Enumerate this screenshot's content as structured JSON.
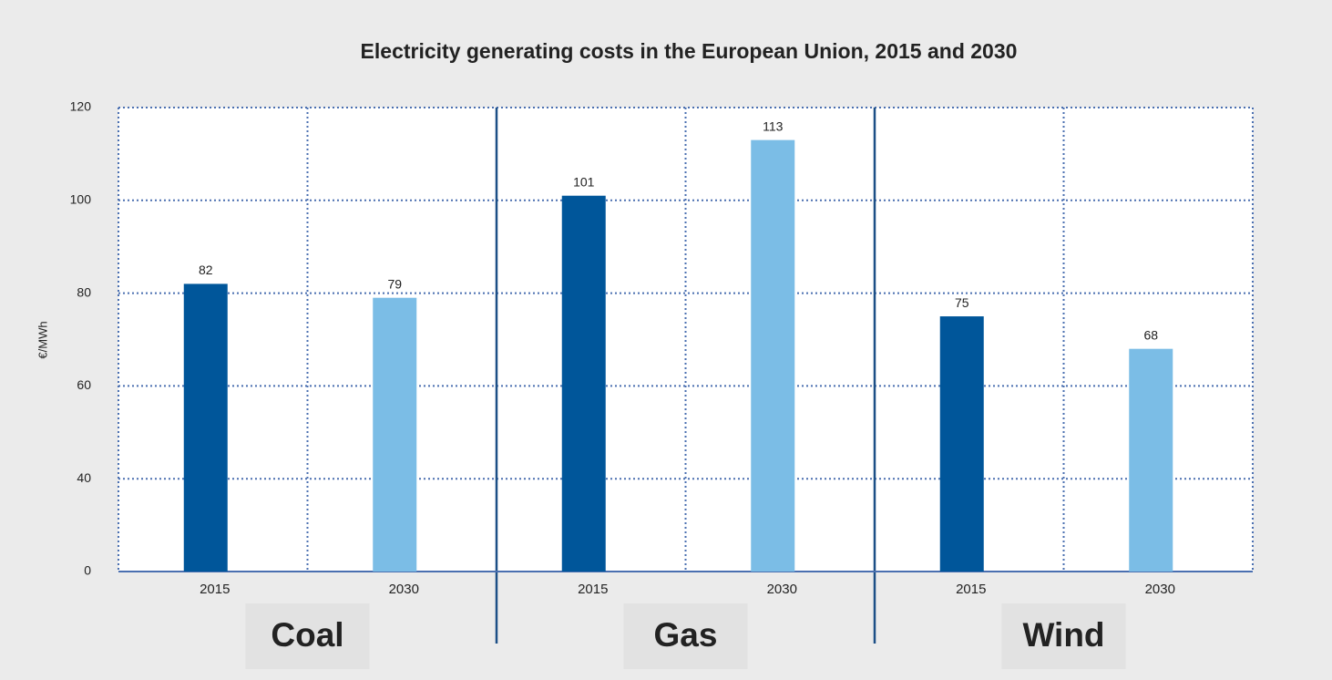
{
  "chart_data": {
    "type": "bar",
    "title": "Electricity generating costs in the European Union, 2015 and 2030",
    "y_label": "€/MWh",
    "groups": [
      "Coal",
      "Gas",
      "Wind"
    ],
    "categories": [
      "2015",
      "2030",
      "2015",
      "2030",
      "2015",
      "2030"
    ],
    "values": [
      82,
      79,
      101,
      113,
      75,
      68
    ],
    "colors": [
      "#00569a",
      "#7bbde6",
      "#00569a",
      "#7bbde6",
      "#00569a",
      "#7bbde6"
    ],
    "ylim": [
      0,
      120
    ],
    "yticks": [
      0,
      40,
      60,
      80,
      100,
      120
    ],
    "grid": true
  }
}
